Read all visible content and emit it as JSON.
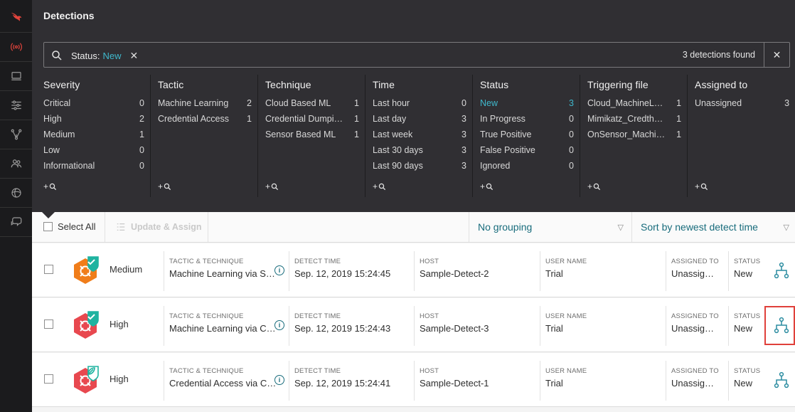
{
  "page": {
    "title": "Detections"
  },
  "rail": {
    "items": [
      "logo",
      "activity-icon",
      "monitor-icon",
      "sliders-icon",
      "network-icon",
      "users-icon",
      "spiral-icon",
      "chat-icon"
    ]
  },
  "search": {
    "filter_key": "Status:",
    "filter_value": "New",
    "result_count": "3 detections found"
  },
  "facets": [
    {
      "title": "Severity",
      "items": [
        {
          "label": "Critical",
          "count": "0"
        },
        {
          "label": "High",
          "count": "2"
        },
        {
          "label": "Medium",
          "count": "1"
        },
        {
          "label": "Low",
          "count": "0"
        },
        {
          "label": "Informational",
          "count": "0"
        }
      ]
    },
    {
      "title": "Tactic",
      "items": [
        {
          "label": "Machine Learning",
          "count": "2"
        },
        {
          "label": "Credential Access",
          "count": "1"
        }
      ]
    },
    {
      "title": "Technique",
      "items": [
        {
          "label": "Cloud Based ML",
          "count": "1"
        },
        {
          "label": "Credential Dumpi…",
          "count": "1"
        },
        {
          "label": "Sensor Based ML",
          "count": "1"
        }
      ]
    },
    {
      "title": "Time",
      "items": [
        {
          "label": "Last hour",
          "count": "0"
        },
        {
          "label": "Last day",
          "count": "3"
        },
        {
          "label": "Last week",
          "count": "3"
        },
        {
          "label": "Last 30 days",
          "count": "3"
        },
        {
          "label": "Last 90 days",
          "count": "3"
        }
      ]
    },
    {
      "title": "Status",
      "items": [
        {
          "label": "New",
          "count": "3"
        },
        {
          "label": "In Progress",
          "count": "0"
        },
        {
          "label": "True Positive",
          "count": "0"
        },
        {
          "label": "False Positive",
          "count": "0"
        },
        {
          "label": "Ignored",
          "count": "0"
        }
      ]
    },
    {
      "title": "Triggering file",
      "items": [
        {
          "label": "Cloud_MachineL…",
          "count": "1"
        },
        {
          "label": "Mimikatz_Credth…",
          "count": "1"
        },
        {
          "label": "OnSensor_Machi…",
          "count": "1"
        }
      ]
    },
    {
      "title": "Assigned to",
      "items": [
        {
          "label": "Unassigned",
          "count": "3"
        }
      ]
    }
  ],
  "facet_add_label": "+",
  "toolbar": {
    "select_all": "Select All",
    "update_assign": "Update & Assign",
    "grouping": "No grouping",
    "sort": "Sort by newest detect time"
  },
  "columns": {
    "tactic": "TACTIC & TECHNIQUE",
    "time": "DETECT TIME",
    "host": "HOST",
    "user": "USER NAME",
    "assigned": "ASSIGNED TO",
    "status": "STATUS"
  },
  "detections": [
    {
      "severity": "Medium",
      "severity_color": "#f07d1a",
      "tactic": "Machine Learning via S…",
      "time": "Sep. 12, 2019 15:24:45",
      "host": "Sample-Detect-2",
      "user": "Trial",
      "assigned": "Unassig…",
      "status": "New",
      "badge": "check"
    },
    {
      "severity": "High",
      "severity_color": "#e8484f",
      "tactic": "Machine Learning via C…",
      "time": "Sep. 12, 2019 15:24:43",
      "host": "Sample-Detect-3",
      "user": "Trial",
      "assigned": "Unassig…",
      "status": "New",
      "badge": "check"
    },
    {
      "severity": "High",
      "severity_color": "#e8484f",
      "tactic": "Credential Access via C…",
      "time": "Sep. 12, 2019 15:24:41",
      "host": "Sample-Detect-1",
      "user": "Trial",
      "assigned": "Unassig…",
      "status": "New",
      "badge": "leaf"
    }
  ],
  "colors": {
    "accent": "#3fb8cc",
    "link": "#186c7c",
    "badge": "#1fb3a0",
    "highlight": "#e0403a"
  }
}
